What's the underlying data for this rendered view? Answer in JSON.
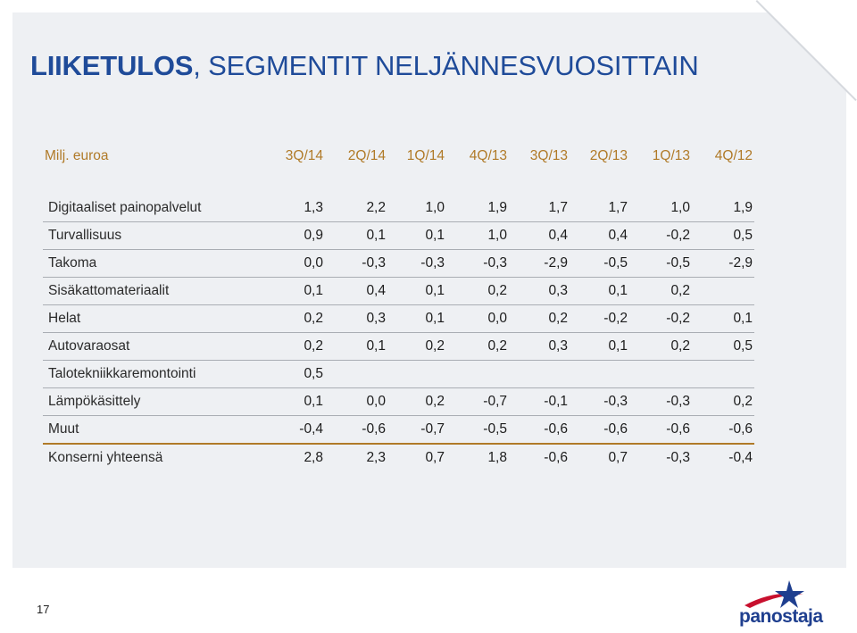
{
  "title": {
    "bold": "LIIKETULOS",
    "rest": ", SEGMENTIT NELJÄNNESVUOSITTAIN"
  },
  "table": {
    "headers": [
      "Milj. euroa",
      "3Q/14",
      "2Q/14",
      "1Q/14",
      "4Q/13",
      "3Q/13",
      "2Q/13",
      "1Q/13",
      "4Q/12"
    ],
    "rows": [
      {
        "label": "Digitaaliset painopalvelut",
        "values": [
          "1,3",
          "2,2",
          "1,0",
          "1,9",
          "1,7",
          "1,7",
          "1,0",
          "1,9"
        ]
      },
      {
        "label": "Turvallisuus",
        "values": [
          "0,9",
          "0,1",
          "0,1",
          "1,0",
          "0,4",
          "0,4",
          "-0,2",
          "0,5"
        ]
      },
      {
        "label": "Takoma",
        "values": [
          "0,0",
          "-0,3",
          "-0,3",
          "-0,3",
          "-2,9",
          "-0,5",
          "-0,5",
          "-2,9"
        ]
      },
      {
        "label": "Sisäkattomateriaalit",
        "values": [
          "0,1",
          "0,4",
          "0,1",
          "0,2",
          "0,3",
          "0,1",
          "0,2",
          ""
        ]
      },
      {
        "label": "Helat",
        "values": [
          "0,2",
          "0,3",
          "0,1",
          "0,0",
          "0,2",
          "-0,2",
          "-0,2",
          "0,1"
        ]
      },
      {
        "label": "Autovaraosat",
        "values": [
          "0,2",
          "0,1",
          "0,2",
          "0,2",
          "0,3",
          "0,1",
          "0,2",
          "0,5"
        ]
      },
      {
        "label": "Talotekniikkaremontointi",
        "values": [
          "0,5",
          "",
          "",
          "",
          "",
          "",
          "",
          ""
        ]
      },
      {
        "label": "Lämpökäsittely",
        "values": [
          "0,1",
          "0,0",
          "0,2",
          "-0,7",
          "-0,1",
          "-0,3",
          "-0,3",
          "0,2"
        ]
      },
      {
        "label": "Muut",
        "values": [
          "-0,4",
          "-0,6",
          "-0,7",
          "-0,5",
          "-0,6",
          "-0,6",
          "-0,6",
          "-0,6"
        ]
      },
      {
        "label": "Konserni yhteensä",
        "values": [
          "2,8",
          "2,3",
          "0,7",
          "1,8",
          "-0,6",
          "0,7",
          "-0,3",
          "-0,4"
        ]
      }
    ]
  },
  "page_number": "17",
  "logo": {
    "text": "panostaja",
    "icon": "star-swoosh-icon"
  },
  "colors": {
    "title": "#1f4b99",
    "header": "#b07a28",
    "panel": "#eef0f3"
  }
}
